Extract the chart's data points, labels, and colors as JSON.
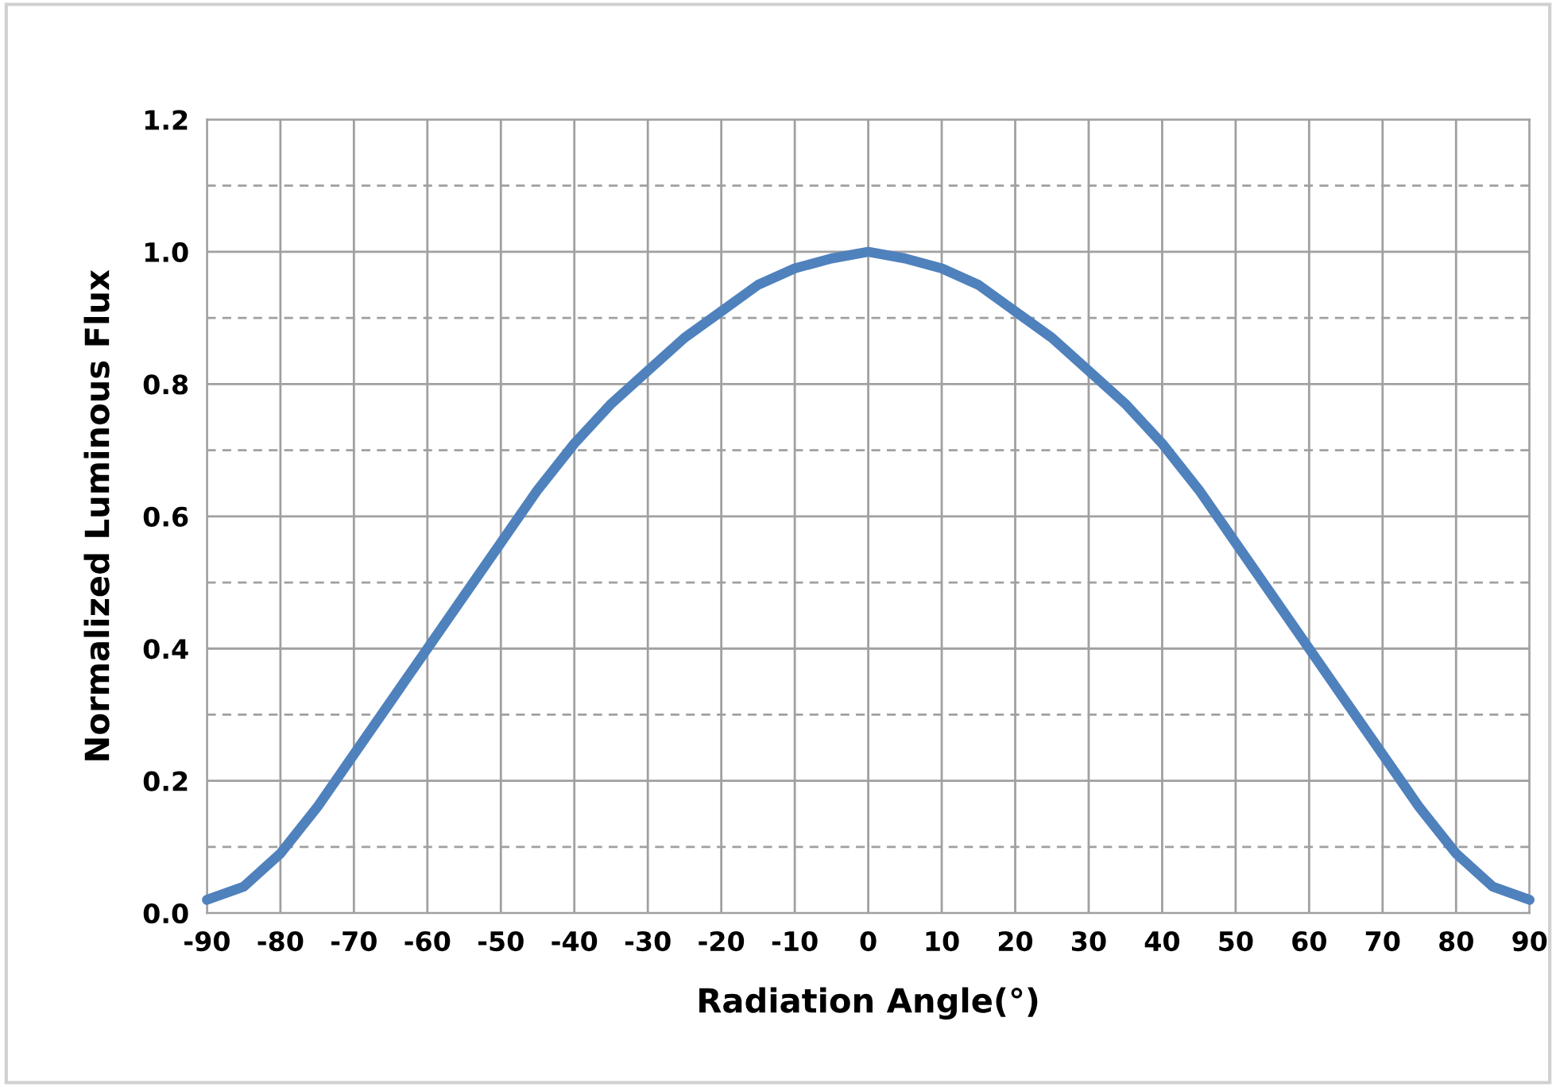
{
  "chart_data": {
    "type": "line",
    "xlabel": "Radiation Angle(°)",
    "ylabel": "Normalized Luminous Flux",
    "x": [
      -90,
      -85,
      -80,
      -75,
      -70,
      -65,
      -60,
      -55,
      -50,
      -45,
      -40,
      -35,
      -30,
      -25,
      -20,
      -15,
      -10,
      -5,
      0,
      5,
      10,
      15,
      20,
      25,
      30,
      35,
      40,
      45,
      50,
      55,
      60,
      65,
      70,
      75,
      80,
      85,
      90
    ],
    "series": [
      {
        "color": "#4f81bd",
        "values": [
          0.02,
          0.04,
          0.09,
          0.16,
          0.24,
          0.32,
          0.4,
          0.48,
          0.56,
          0.64,
          0.71,
          0.77,
          0.82,
          0.87,
          0.91,
          0.95,
          0.975,
          0.99,
          1.0,
          0.99,
          0.975,
          0.95,
          0.91,
          0.87,
          0.82,
          0.77,
          0.71,
          0.64,
          0.56,
          0.48,
          0.4,
          0.32,
          0.24,
          0.16,
          0.09,
          0.04,
          0.02
        ]
      }
    ],
    "xlim": [
      -90,
      90
    ],
    "xticks": [
      -90,
      -80,
      -70,
      -60,
      -50,
      -40,
      -30,
      -20,
      -10,
      0,
      10,
      20,
      30,
      40,
      50,
      60,
      70,
      80,
      90
    ],
    "ylim": [
      0,
      1.2
    ],
    "yticks": [
      {
        "value": 0,
        "label": "0.0"
      },
      {
        "value": 0.1,
        "label": null
      },
      {
        "value": 0.2,
        "label": "0.2"
      },
      {
        "value": 0.3,
        "label": null
      },
      {
        "value": 0.4,
        "label": "0.4"
      },
      {
        "value": 0.5,
        "label": null
      },
      {
        "value": 0.6,
        "label": "0.6"
      },
      {
        "value": 0.7,
        "label": null
      },
      {
        "value": 0.8,
        "label": "0.8"
      },
      {
        "value": 0.9,
        "label": null
      },
      {
        "value": 1.0,
        "label": "1.0"
      },
      {
        "value": 1.1,
        "label": null
      },
      {
        "value": 1.2,
        "label": "1.2"
      }
    ],
    "grid": true,
    "marker": "none",
    "line_style": "solid"
  }
}
